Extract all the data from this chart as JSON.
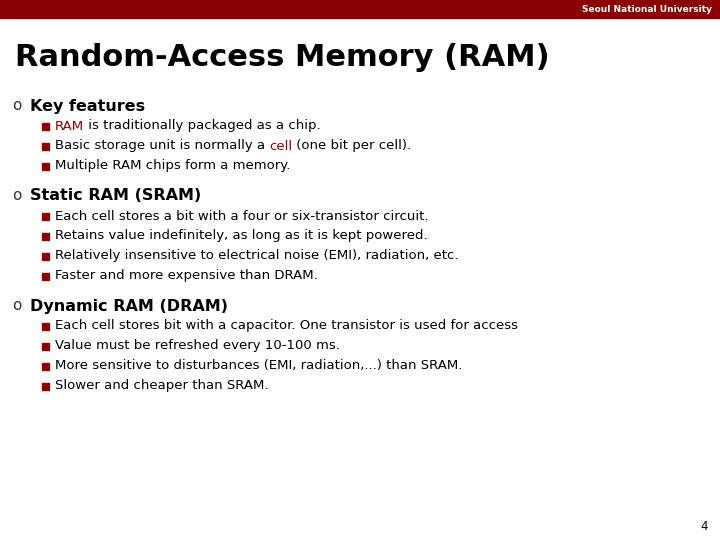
{
  "title": "Random-Access Memory (RAM)",
  "header_bar_color": "#8B0000",
  "header_text": "Seoul National University",
  "header_text_color": "#FFFFFF",
  "title_color": "#000000",
  "title_fontsize": 22,
  "background_color": "#FFFFFF",
  "bullet_square_color": "#8B0000",
  "dark_red": "#8B0000",
  "page_number": "4",
  "header_bar_height": 18,
  "sections": [
    {
      "heading": "Key features",
      "items": [
        [
          {
            "text": "RAM",
            "color": "#8B0000"
          },
          {
            "text": " is traditionally packaged as a chip.",
            "color": "#000000"
          }
        ],
        [
          {
            "text": "Basic storage unit is normally a ",
            "color": "#000000"
          },
          {
            "text": "cell",
            "color": "#8B0000"
          },
          {
            "text": " (one bit per cell).",
            "color": "#000000"
          }
        ],
        [
          {
            "text": "Multiple RAM chips form a memory.",
            "color": "#000000"
          }
        ]
      ]
    },
    {
      "heading": "Static RAM (SRAM)",
      "items": [
        [
          {
            "text": "Each cell stores a bit with a four or six-transistor circuit.",
            "color": "#000000"
          }
        ],
        [
          {
            "text": "Retains value indefinitely, as long as it is kept powered.",
            "color": "#000000"
          }
        ],
        [
          {
            "text": "Relatively insensitive to electrical noise (EMI), radiation, etc.",
            "color": "#000000"
          }
        ],
        [
          {
            "text": "Faster and more expensive than DRAM.",
            "color": "#000000"
          }
        ]
      ]
    },
    {
      "heading": "Dynamic RAM (DRAM)",
      "items": [
        [
          {
            "text": "Each cell stores bit with a capacitor. One transistor is used for access",
            "color": "#000000"
          }
        ],
        [
          {
            "text": "Value must be refreshed every 10-100 ms.",
            "color": "#000000"
          }
        ],
        [
          {
            "text": "More sensitive to disturbances (EMI, radiation,...) than SRAM.",
            "color": "#000000"
          }
        ],
        [
          {
            "text": "Slower and cheaper than SRAM.",
            "color": "#000000"
          }
        ]
      ]
    }
  ]
}
